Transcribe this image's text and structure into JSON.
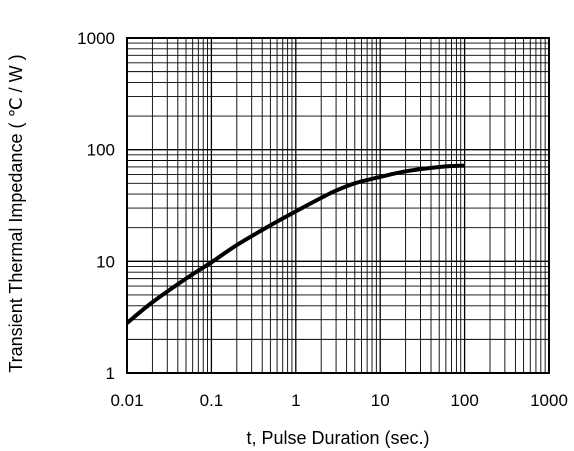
{
  "chart_data": {
    "type": "line",
    "title": "",
    "xlabel": "t, Pulse Duration (sec.)",
    "ylabel": "Transient Thermal Impedance ( ℃ / W )",
    "x_scale": "log",
    "y_scale": "log",
    "xlim": [
      0.01,
      1000
    ],
    "ylim": [
      1,
      1000
    ],
    "grid": true,
    "x_ticks": [
      "0.01",
      "0.1",
      "1",
      "10",
      "100",
      "1000"
    ],
    "y_ticks": [
      "1",
      "10",
      "100",
      "1000"
    ],
    "series": [
      {
        "line_color": "#000000",
        "x": [
          0.01,
          0.02,
          0.05,
          0.1,
          0.2,
          0.5,
          1,
          2,
          3,
          5,
          10,
          20,
          50,
          100
        ],
        "y": [
          2.8,
          4.3,
          7.0,
          9.8,
          14,
          21,
          28,
          37,
          43,
          50,
          57,
          64,
          70,
          72
        ]
      }
    ]
  }
}
